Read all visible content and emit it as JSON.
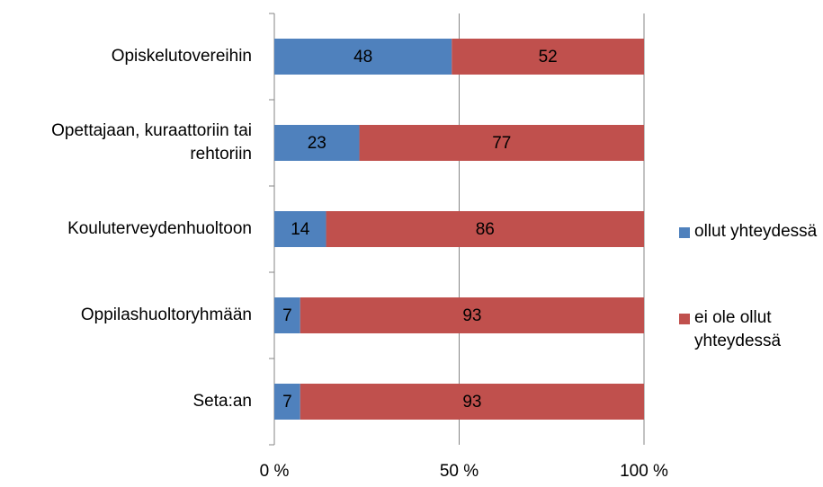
{
  "chart_data": {
    "type": "stacked_bar_horizontal",
    "categories": [
      "Opiskelutovereihin",
      "Opettajaan, kuraattoriin tai rehtoriin",
      "Kouluterveydenhuoltoon",
      "Oppilashuoltoryhmään",
      "Seta:an"
    ],
    "series": [
      {
        "name": "ollut yhteydessä",
        "color": "#4f81bd",
        "values": [
          48,
          23,
          14,
          7,
          7
        ]
      },
      {
        "name": "ei ole ollut yhteydessä",
        "color": "#c0504d",
        "values": [
          52,
          77,
          86,
          93,
          93
        ]
      }
    ],
    "xlim": [
      0,
      100
    ],
    "xticks": [
      {
        "value": 0,
        "label": "0 %"
      },
      {
        "value": 50,
        "label": "50 %"
      },
      {
        "value": 100,
        "label": "100 %"
      }
    ],
    "grid": true,
    "legend": "right"
  }
}
